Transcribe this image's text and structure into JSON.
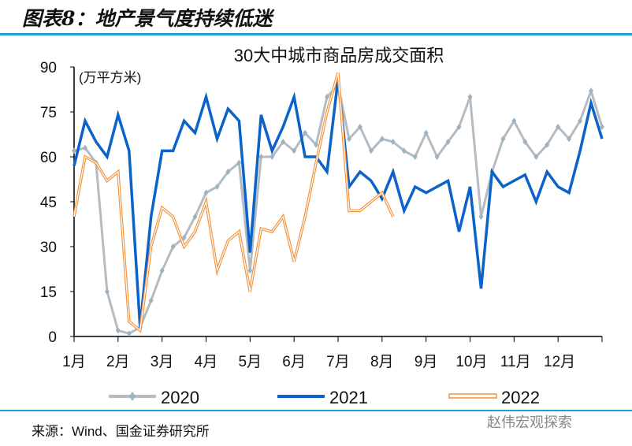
{
  "figure_title": "图表8：地产景气度持续低迷",
  "source": "来源：Wind、国金证券研究所",
  "watermark": "赵伟宏观探索",
  "colors": {
    "s2020": "#b4bcc2",
    "s2020_marker": "#9fb3bf",
    "s2021": "#0b63c9",
    "s2022": "#f5913a",
    "rule": "#1aa1d6"
  },
  "chart_data": {
    "type": "line",
    "title": "30大中城市商品房成交面积",
    "ylabel": "(万平方米)",
    "xlabel": "",
    "ylim": [
      0,
      90
    ],
    "yticks": [
      0,
      15,
      30,
      45,
      60,
      75,
      90
    ],
    "xlim": [
      0,
      12
    ],
    "xtick_labels": [
      "1月",
      "2月",
      "3月",
      "4月",
      "5月",
      "6月",
      "7月",
      "8月",
      "9月",
      "10月",
      "11月",
      "12月"
    ],
    "x_step_months": 0.25,
    "legend_position": "bottom",
    "series": [
      {
        "name": "2020",
        "values": [
          62,
          63,
          58,
          15,
          2,
          1,
          3,
          12,
          22,
          30,
          33,
          40,
          48,
          50,
          55,
          58,
          22,
          60,
          60,
          65,
          62,
          68,
          64,
          80,
          84,
          66,
          70,
          62,
          66,
          65,
          62,
          60,
          68,
          60,
          65,
          70,
          80,
          40,
          55,
          66,
          72,
          65,
          60,
          64,
          70,
          66,
          72,
          82,
          70
        ]
      },
      {
        "name": "2021",
        "values": [
          57,
          72,
          65,
          60,
          74,
          62,
          3,
          40,
          62,
          62,
          72,
          68,
          80,
          66,
          76,
          72,
          28,
          74,
          62,
          70,
          80,
          60,
          60,
          55,
          86,
          50,
          55,
          52,
          46,
          55,
          42,
          50,
          48,
          50,
          52,
          35,
          50,
          16,
          55,
          50,
          52,
          54,
          45,
          55,
          50,
          48,
          62,
          78,
          66
        ]
      },
      {
        "name": "2022",
        "values": [
          40,
          60,
          58,
          52,
          55,
          5,
          2,
          30,
          43,
          40,
          30,
          35,
          45,
          22,
          32,
          35,
          15,
          36,
          35,
          40,
          25,
          40,
          58,
          75,
          88,
          42,
          42,
          45,
          48,
          40
        ]
      }
    ]
  }
}
